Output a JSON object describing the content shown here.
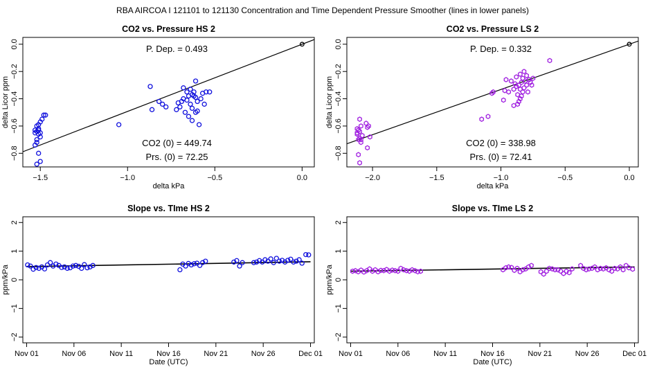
{
  "figure_title": "RBA   AIRCOA I   121101 to 121130   Concentration and Time Dependent Pressure Smoother (lines in lower panels)",
  "colors": {
    "hs": "#1010dd",
    "ls": "#a020e0",
    "axis": "#000000",
    "fit": "#000000"
  },
  "chart_data": [
    {
      "id": "co2-pressure-hs2",
      "type": "scatter",
      "title": "CO2 vs. Pressure HS 2",
      "xlabel": "delta kPa",
      "ylabel": "delta Licor ppm",
      "xlim": [
        -1.6,
        0.07
      ],
      "ylim": [
        -0.9,
        0.05
      ],
      "xticks": [
        -1.5,
        -1.0,
        -0.5,
        0.0
      ],
      "xtick_labels": [
        "−1.5",
        "−1.0",
        "−0.5",
        "0.0"
      ],
      "yticks": [
        0.0,
        -0.2,
        -0.4,
        -0.6,
        -0.8
      ],
      "ytick_labels": [
        "0.0",
        "−0.2",
        "−0.4",
        "−0.6",
        "−0.8"
      ],
      "annotations": {
        "p_dep": "P. Dep. =  0.493",
        "co2_0": "CO2 (0) =  449.74",
        "prs_0": "Prs. (0) =  72.25"
      },
      "fit_line": {
        "slope": 0.493,
        "intercept": 0.0
      },
      "reference_point": [
        0.0,
        0.0
      ],
      "series_color": "hs",
      "x": [
        -1.52,
        -1.51,
        -1.53,
        -1.5,
        -1.52,
        -1.51,
        -1.49,
        -1.48,
        -1.52,
        -1.53,
        -1.51,
        -1.5,
        -1.52,
        -1.51,
        -1.5,
        -1.47,
        -1.52,
        -1.53,
        -1.5,
        -1.51,
        -1.05,
        -0.87,
        -0.86,
        -0.82,
        -0.8,
        -0.78,
        -0.72,
        -0.71,
        -0.7,
        -0.69,
        -0.68,
        -0.68,
        -0.67,
        -0.66,
        -0.65,
        -0.65,
        -0.64,
        -0.64,
        -0.63,
        -0.63,
        -0.62,
        -0.62,
        -0.61,
        -0.61,
        -0.6,
        -0.6,
        -0.59,
        -0.58,
        -0.57,
        -0.56,
        -0.55,
        -0.53,
        -0.66,
        -0.63,
        -0.61
      ],
      "y": [
        -0.6,
        -0.62,
        -0.65,
        -0.57,
        -0.7,
        -0.66,
        -0.55,
        -0.52,
        -0.72,
        -0.63,
        -0.8,
        -0.86,
        -0.88,
        -0.63,
        -0.68,
        -0.52,
        -0.64,
        -0.74,
        -0.65,
        -0.59,
        -0.59,
        -0.31,
        -0.48,
        -0.42,
        -0.44,
        -0.46,
        -0.48,
        -0.43,
        -0.46,
        -0.42,
        -0.4,
        -0.32,
        -0.5,
        -0.35,
        -0.38,
        -0.53,
        -0.44,
        -0.33,
        -0.47,
        -0.56,
        -0.38,
        -0.35,
        -0.5,
        -0.27,
        -0.42,
        -0.49,
        -0.59,
        -0.4,
        -0.36,
        -0.44,
        -0.35,
        -0.35,
        -0.41,
        -0.37,
        -0.39
      ]
    },
    {
      "id": "co2-pressure-ls2",
      "type": "scatter",
      "title": "CO2 vs. Pressure LS 2",
      "xlabel": "delta kPa",
      "ylabel": "delta Licor ppm",
      "xlim": [
        -2.2,
        0.07
      ],
      "ylim": [
        -0.9,
        0.05
      ],
      "xticks": [
        -2.0,
        -1.5,
        -1.0,
        -0.5,
        0.0
      ],
      "xtick_labels": [
        "−2.0",
        "−1.5",
        "−1.0",
        "−0.5",
        "0.0"
      ],
      "yticks": [
        0.0,
        -0.2,
        -0.4,
        -0.6,
        -0.8
      ],
      "ytick_labels": [
        "0.0",
        "−0.2",
        "−0.4",
        "−0.6",
        "−0.8"
      ],
      "annotations": {
        "p_dep": "P. Dep. =  0.332",
        "co2_0": "CO2 (0) =  338.98",
        "prs_0": "Prs. (0) =  72.41"
      },
      "fit_line": {
        "slope": 0.332,
        "intercept": 0.0
      },
      "reference_point": [
        0.0,
        0.0
      ],
      "series_color": "ls",
      "x": [
        -2.1,
        -2.09,
        -2.11,
        -2.12,
        -2.08,
        -2.1,
        -2.11,
        -2.09,
        -2.1,
        -2.12,
        -2.05,
        -2.03,
        -2.04,
        -2.02,
        -2.11,
        -2.1,
        -2.09,
        -2.04,
        -2.12,
        -1.15,
        -1.1,
        -1.07,
        -1.06,
        -0.98,
        -0.97,
        -0.96,
        -0.94,
        -0.92,
        -0.9,
        -0.9,
        -0.89,
        -0.88,
        -0.88,
        -0.87,
        -0.86,
        -0.86,
        -0.85,
        -0.85,
        -0.84,
        -0.84,
        -0.83,
        -0.83,
        -0.82,
        -0.82,
        -0.81,
        -0.8,
        -0.8,
        -0.79,
        -0.78,
        -0.77,
        -0.76,
        -0.75,
        -0.62,
        -0.87,
        -0.85
      ],
      "y": [
        -0.55,
        -0.6,
        -0.63,
        -0.65,
        -0.67,
        -0.69,
        -0.7,
        -0.72,
        -0.64,
        -0.62,
        -0.58,
        -0.6,
        -0.61,
        -0.68,
        -0.81,
        -0.87,
        -0.7,
        -0.76,
        -0.66,
        -0.55,
        -0.53,
        -0.36,
        -0.35,
        -0.41,
        -0.34,
        -0.26,
        -0.35,
        -0.27,
        -0.33,
        -0.45,
        -0.29,
        -0.31,
        -0.24,
        -0.37,
        -0.3,
        -0.42,
        -0.22,
        -0.33,
        -0.38,
        -0.28,
        -0.35,
        -0.25,
        -0.2,
        -0.32,
        -0.27,
        -0.3,
        -0.23,
        -0.35,
        -0.26,
        -0.28,
        -0.3,
        -0.25,
        -0.12,
        -0.44,
        -0.4
      ]
    },
    {
      "id": "slope-time-hs2",
      "type": "scatter",
      "title": "Slope vs. TIme HS 2",
      "xlabel": "Date (UTC)",
      "ylabel": "ppm/kPa",
      "xlim": [
        -0.4,
        30.4
      ],
      "ylim": [
        -2.2,
        2.2
      ],
      "xticks": [
        0,
        5,
        10,
        15,
        20,
        25,
        30
      ],
      "xtick_labels": [
        "Nov 01",
        "Nov 06",
        "Nov 11",
        "Nov 16",
        "Nov 21",
        "Nov 26",
        "Dec 01"
      ],
      "yticks": [
        -2,
        -1,
        0,
        1,
        2
      ],
      "ytick_labels": [
        "−2",
        "−1",
        "0",
        "1",
        "2"
      ],
      "series_color": "hs",
      "smoother": {
        "x": [
          0,
          30
        ],
        "y": [
          0.46,
          0.63
        ]
      },
      "x": [
        0.1,
        0.4,
        0.7,
        1.0,
        1.3,
        1.6,
        1.9,
        2.2,
        2.5,
        2.8,
        3.1,
        3.4,
        3.7,
        4.0,
        4.3,
        4.6,
        4.9,
        5.2,
        5.5,
        5.8,
        6.1,
        6.4,
        6.7,
        7.0,
        16.2,
        16.5,
        16.8,
        17.1,
        17.4,
        17.7,
        18.0,
        18.3,
        18.6,
        18.9,
        21.9,
        22.2,
        22.5,
        22.8,
        24.0,
        24.3,
        24.6,
        24.9,
        25.2,
        25.5,
        25.8,
        26.1,
        26.4,
        26.7,
        27.0,
        27.3,
        27.6,
        27.9,
        28.2,
        28.5,
        28.8,
        29.1,
        29.5,
        29.8
      ],
      "y": [
        0.52,
        0.48,
        0.37,
        0.43,
        0.4,
        0.45,
        0.38,
        0.52,
        0.6,
        0.48,
        0.55,
        0.5,
        0.43,
        0.45,
        0.4,
        0.42,
        0.48,
        0.5,
        0.47,
        0.4,
        0.53,
        0.42,
        0.45,
        0.5,
        0.35,
        0.55,
        0.48,
        0.57,
        0.52,
        0.56,
        0.58,
        0.5,
        0.6,
        0.65,
        0.62,
        0.67,
        0.48,
        0.6,
        0.6,
        0.62,
        0.67,
        0.62,
        0.7,
        0.65,
        0.73,
        0.6,
        0.75,
        0.65,
        0.68,
        0.62,
        0.68,
        0.72,
        0.62,
        0.65,
        0.7,
        0.58,
        0.88,
        0.87
      ]
    },
    {
      "id": "slope-time-ls2",
      "type": "scatter",
      "title": "Slope vs. TIme LS 2",
      "xlabel": "Date (UTC)",
      "ylabel": "ppm/kPa",
      "xlim": [
        -0.4,
        30.4
      ],
      "ylim": [
        -2.2,
        2.2
      ],
      "xticks": [
        0,
        5,
        10,
        15,
        20,
        25,
        30
      ],
      "xtick_labels": [
        "Nov 01",
        "Nov 06",
        "Nov 11",
        "Nov 16",
        "Nov 21",
        "Nov 26",
        "Dec 01"
      ],
      "yticks": [
        -2,
        -1,
        0,
        1,
        2
      ],
      "ytick_labels": [
        "−2",
        "−1",
        "0",
        "1",
        "2"
      ],
      "series_color": "ls",
      "smoother": {
        "x": [
          0,
          30
        ],
        "y": [
          0.3,
          0.45
        ]
      },
      "x": [
        0.2,
        0.5,
        0.8,
        1.1,
        1.4,
        1.7,
        2.0,
        2.3,
        2.6,
        2.9,
        3.2,
        3.5,
        3.8,
        4.1,
        4.4,
        4.7,
        5.0,
        5.3,
        5.6,
        5.9,
        6.2,
        6.5,
        6.8,
        7.1,
        7.4,
        16.1,
        16.4,
        16.7,
        17.0,
        17.3,
        17.6,
        17.9,
        18.2,
        18.5,
        18.8,
        19.1,
        20.1,
        20.4,
        20.7,
        21.0,
        21.3,
        21.6,
        21.9,
        22.2,
        22.5,
        22.8,
        23.1,
        23.4,
        24.3,
        24.6,
        24.9,
        25.2,
        25.5,
        25.8,
        26.1,
        26.4,
        26.7,
        27.0,
        27.3,
        27.6,
        27.9,
        28.2,
        28.5,
        28.8,
        29.1,
        29.4,
        29.8
      ],
      "y": [
        0.3,
        0.32,
        0.28,
        0.34,
        0.27,
        0.32,
        0.38,
        0.3,
        0.35,
        0.28,
        0.33,
        0.32,
        0.36,
        0.3,
        0.34,
        0.32,
        0.3,
        0.4,
        0.35,
        0.32,
        0.3,
        0.35,
        0.32,
        0.28,
        0.3,
        0.35,
        0.42,
        0.45,
        0.43,
        0.33,
        0.4,
        0.28,
        0.35,
        0.38,
        0.45,
        0.5,
        0.28,
        0.2,
        0.3,
        0.4,
        0.38,
        0.35,
        0.35,
        0.3,
        0.22,
        0.3,
        0.25,
        0.38,
        0.5,
        0.4,
        0.35,
        0.38,
        0.4,
        0.45,
        0.35,
        0.4,
        0.38,
        0.42,
        0.35,
        0.3,
        0.4,
        0.38,
        0.45,
        0.35,
        0.5,
        0.42,
        0.37
      ]
    }
  ]
}
